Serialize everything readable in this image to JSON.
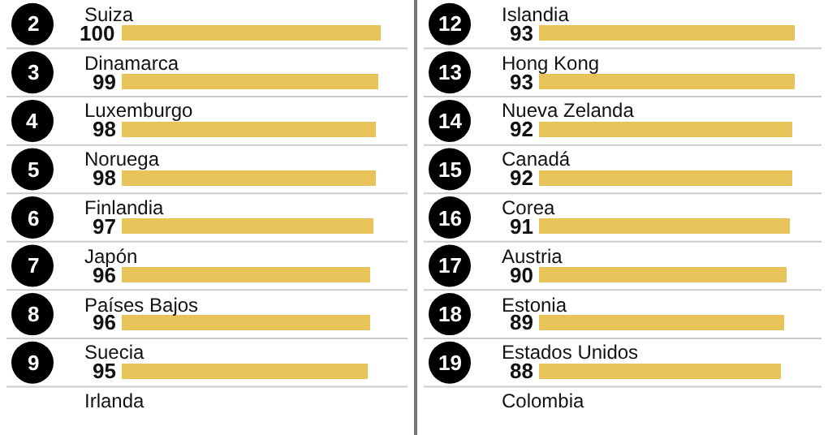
{
  "chart_data": [
    {
      "type": "bar",
      "orientation": "horizontal",
      "categories": [
        "Suiza",
        "Dinamarca",
        "Luxemburgo",
        "Noruega",
        "Finlandia",
        "Japón",
        "Países Bajos",
        "Suecia",
        "Irlanda"
      ],
      "values": [
        100,
        99,
        98,
        98,
        97,
        96,
        96,
        95,
        null
      ],
      "color": "#e8c35a",
      "data_labels": true,
      "annotations": [
        "2",
        "3",
        "4",
        "5",
        "6",
        "7",
        "8",
        "9"
      ]
    },
    {
      "type": "bar",
      "orientation": "horizontal",
      "categories": [
        "Islandia",
        "Hong Kong",
        "Nueva Zelanda",
        "Canadá",
        "Corea",
        "Austria",
        "Estonia",
        "Estados Unidos",
        "Colombia"
      ],
      "values": [
        93,
        93,
        92,
        92,
        91,
        90,
        89,
        88,
        null
      ],
      "color": "#e8c35a",
      "data_labels": true,
      "annotations": [
        "12",
        "13",
        "14",
        "15",
        "16",
        "17",
        "18",
        "19"
      ]
    }
  ]
}
